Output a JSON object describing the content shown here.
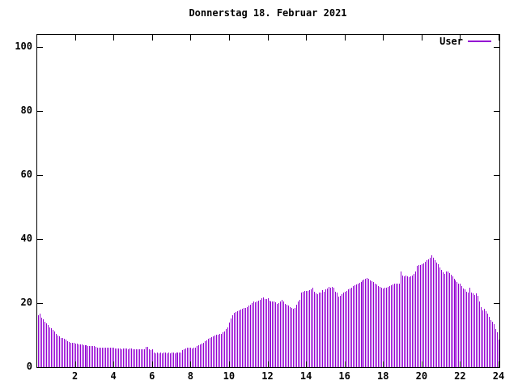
{
  "title": "Donnerstag 18. Februar 2021",
  "legend": {
    "label": "User",
    "color": "#9400D3"
  },
  "chart_data": {
    "type": "bar",
    "title": "Donnerstag 18. Februar 2021",
    "xlabel": "",
    "ylabel": "",
    "xlim": [
      0,
      24
    ],
    "ylim": [
      0,
      103.8
    ],
    "xticks": [
      2,
      4,
      6,
      8,
      10,
      12,
      14,
      16,
      18,
      20,
      22,
      24
    ],
    "yticks": [
      0,
      20,
      40,
      60,
      80,
      100
    ],
    "grid": false,
    "legend_position": "top-right",
    "x_unit": "hour-of-day",
    "points_per_hour": 12,
    "bar_color": "#9400D3",
    "series": [
      {
        "name": "User",
        "values": [
          16.2,
          16.6,
          15.4,
          14.9,
          14.3,
          13.7,
          13.1,
          12.5,
          12.1,
          11.6,
          11.2,
          10.3,
          9.8,
          9.5,
          9.2,
          9.0,
          8.8,
          8.5,
          8.2,
          7.9,
          7.7,
          7.6,
          7.5,
          7.4,
          7.3,
          7.2,
          7.1,
          7.0,
          6.9,
          6.8,
          6.8,
          6.7,
          6.6,
          6.6,
          6.5,
          6.5,
          6.3,
          6.2,
          6.1,
          6.1,
          6.0,
          6.0,
          6.1,
          6.0,
          6.0,
          6.1,
          6.0,
          6.0,
          5.7,
          5.9,
          5.7,
          5.8,
          5.6,
          5.9,
          5.7,
          5.8,
          5.6,
          5.7,
          5.8,
          5.6,
          5.6,
          5.5,
          5.6,
          5.5,
          5.6,
          5.5,
          5.5,
          6.3,
          6.3,
          5.6,
          5.4,
          5.5,
          4.5,
          4.4,
          4.5,
          4.3,
          4.5,
          4.4,
          4.5,
          4.5,
          4.3,
          4.5,
          4.4,
          4.5,
          4.5,
          4.4,
          4.5,
          4.5,
          4.6,
          4.5,
          5.3,
          5.5,
          5.8,
          6.0,
          6.0,
          6.2,
          5.8,
          6.0,
          6.2,
          6.5,
          6.8,
          7.1,
          7.4,
          7.7,
          8.0,
          8.4,
          8.8,
          9.1,
          9.3,
          9.6,
          9.9,
          10.1,
          10.1,
          10.3,
          10.5,
          10.8,
          11.2,
          11.8,
          12.5,
          13.8,
          15.2,
          16.1,
          16.9,
          17.1,
          17.4,
          17.8,
          18.1,
          18.3,
          18.4,
          18.6,
          18.8,
          19.3,
          19.6,
          20.0,
          20.5,
          20.2,
          20.6,
          20.8,
          21.0,
          21.5,
          21.8,
          21.3,
          21.2,
          21.5,
          20.8,
          20.6,
          20.6,
          20.4,
          20.2,
          19.8,
          20.0,
          20.6,
          21.0,
          20.4,
          19.8,
          19.5,
          19.2,
          18.8,
          18.4,
          18.2,
          18.6,
          19.5,
          20.6,
          21.0,
          23.2,
          23.5,
          23.7,
          23.8,
          23.8,
          24.0,
          24.3,
          24.9,
          23.5,
          23.0,
          22.8,
          23.4,
          23.2,
          24.0,
          23.6,
          24.2,
          24.6,
          25.0,
          24.8,
          25.0,
          24.7,
          23.5,
          23.2,
          22.0,
          22.3,
          22.8,
          23.3,
          23.6,
          23.8,
          24.2,
          24.5,
          24.8,
          25.2,
          25.5,
          25.8,
          26.0,
          26.3,
          26.6,
          27.0,
          27.3,
          27.5,
          27.8,
          27.6,
          27.2,
          26.8,
          26.5,
          26.2,
          25.8,
          25.4,
          25.0,
          24.7,
          24.5,
          24.8,
          24.9,
          25.0,
          25.3,
          25.6,
          25.8,
          26.0,
          26.2,
          26.0,
          26.2,
          30.0,
          28.6,
          28.4,
          28.6,
          28.3,
          28.2,
          28.4,
          28.7,
          29.2,
          30.0,
          31.6,
          31.9,
          32.0,
          32.2,
          32.5,
          32.8,
          33.3,
          33.6,
          34.2,
          35.0,
          34.2,
          33.3,
          32.6,
          32.2,
          31.2,
          30.5,
          29.5,
          29.2,
          29.8,
          30.0,
          29.4,
          28.8,
          28.3,
          27.6,
          27.0,
          26.5,
          26.2,
          26.0,
          25.2,
          24.6,
          24.4,
          23.6,
          23.4,
          24.8,
          23.4,
          23.0,
          22.6,
          23.0,
          22.4,
          20.6,
          18.7,
          17.8,
          18.3,
          17.5,
          16.8,
          15.7,
          14.8,
          14.2,
          13.4,
          11.9,
          11.0,
          8.5
        ]
      }
    ]
  }
}
